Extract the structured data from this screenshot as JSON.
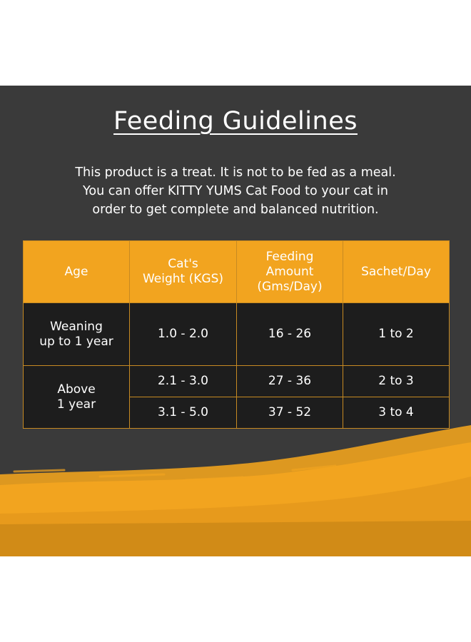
{
  "page": {
    "title": "Feeding Guidelines",
    "intro_lines": [
      "This product is a treat. It is not to be fed as a meal.",
      "You can offer KITTY YUMS Cat Food to your cat in",
      "order to get complete and balanced nutrition."
    ]
  },
  "table": {
    "headers": [
      "Age",
      "Cat's\nWeight (KGS)",
      "Feeding\nAmount\n(Gms/Day)",
      "Sachet/Day"
    ],
    "rows": [
      {
        "age": "Weaning\nup to 1 year",
        "weight": "1.0 - 2.0",
        "amount": "16 - 26",
        "sachet": "1 to 2"
      },
      {
        "age": "Above\n1 year",
        "weight": "2.1 - 3.0",
        "amount": "27 - 36",
        "sachet": "2 to 3"
      },
      {
        "weight": "3.1 - 5.0",
        "amount": "37 - 52",
        "sachet": "3 to 4"
      }
    ]
  },
  "colors": {
    "background": "#3a3a3a",
    "header_fill": "#f2a41f",
    "cell_fill": "#1d1d1d",
    "border": "#c78a22",
    "accent_brush": "#f0a31e"
  }
}
